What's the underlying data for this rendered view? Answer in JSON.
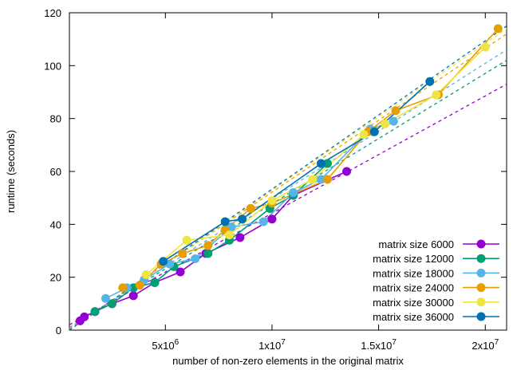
{
  "chart_data": {
    "type": "line",
    "xlabel": "number of non-zero elements in the original matrix",
    "ylabel": "runtime (seconds)",
    "xlim": [
      500000,
      21000000
    ],
    "ylim": [
      0,
      120
    ],
    "yticks": [
      0,
      20,
      40,
      60,
      80,
      100,
      120
    ],
    "xticks": [
      {
        "value": 5000000,
        "mantissa": "5x10",
        "exp": "6"
      },
      {
        "value": 10000000,
        "mantissa": "1x10",
        "exp": "7"
      },
      {
        "value": 15000000,
        "mantissa": "1.5x10",
        "exp": "7"
      },
      {
        "value": 20000000,
        "mantissa": "2x10",
        "exp": "7"
      }
    ],
    "grid": false,
    "legend_position": "bottom-right",
    "series": [
      {
        "name": "matrix size 6000",
        "color": "#9400d3",
        "x": [
          1000000,
          1200000,
          1700000,
          2500000,
          3500000,
          4500000,
          5700000,
          6900000,
          8500000,
          10000000,
          11000000,
          13500000
        ],
        "y": [
          3.5,
          5,
          7,
          10,
          13,
          18,
          22,
          29,
          35,
          42,
          51,
          60
        ],
        "fit": {
          "from": [
            500000,
            2
          ],
          "to": [
            21000000,
            93
          ]
        }
      },
      {
        "name": "matrix size 12000",
        "color": "#009e73",
        "x": [
          1700000,
          2500000,
          3500000,
          4500000,
          5400000,
          7000000,
          8000000,
          9900000,
          11000000,
          12600000
        ],
        "y": [
          7,
          10,
          16,
          18,
          24,
          29,
          34,
          46,
          51,
          63
        ],
        "fit": {
          "from": [
            500000,
            1
          ],
          "to": [
            21000000,
            102
          ]
        }
      },
      {
        "name": "matrix size 18000",
        "color": "#56b4e9",
        "x": [
          2200000,
          3200000,
          4000000,
          5200000,
          6400000,
          8100000,
          9600000,
          11000000,
          12300000,
          14600000,
          15700000
        ],
        "y": [
          12,
          16,
          19,
          25,
          27,
          39,
          41,
          52,
          57,
          76,
          79
        ],
        "fit": {
          "from": [
            500000,
            1
          ],
          "to": [
            21000000,
            106
          ]
        }
      },
      {
        "name": "matrix size 24000",
        "color": "#e69f00",
        "x": [
          3000000,
          3800000,
          4800000,
          5800000,
          7000000,
          7800000,
          9000000,
          10000000,
          12600000,
          14500000,
          15800000,
          17800000,
          20600000
        ],
        "y": [
          16,
          17,
          25,
          29,
          32,
          38,
          46,
          48,
          57,
          75,
          83,
          89,
          114
        ],
        "fit": {
          "from": [
            500000,
            0.5
          ],
          "to": [
            21000000,
            112
          ]
        }
      },
      {
        "name": "matrix size 30000",
        "color": "#f0e442",
        "x": [
          4100000,
          6000000,
          8000000,
          10000000,
          11900000,
          14300000,
          15300000,
          17700000,
          20000000
        ],
        "y": [
          21,
          34,
          36,
          49,
          57,
          74,
          78,
          89,
          107
        ],
        "fit": {
          "from": [
            500000,
            0
          ],
          "to": [
            21000000,
            114
          ]
        }
      },
      {
        "name": "matrix size 36000",
        "color": "#0072b2",
        "x": [
          4900000,
          7800000,
          8600000,
          12300000,
          14800000,
          17400000
        ],
        "y": [
          26,
          41,
          42,
          63,
          75,
          94
        ],
        "fit": {
          "from": [
            500000,
            0
          ],
          "to": [
            21000000,
            115
          ]
        }
      }
    ]
  }
}
